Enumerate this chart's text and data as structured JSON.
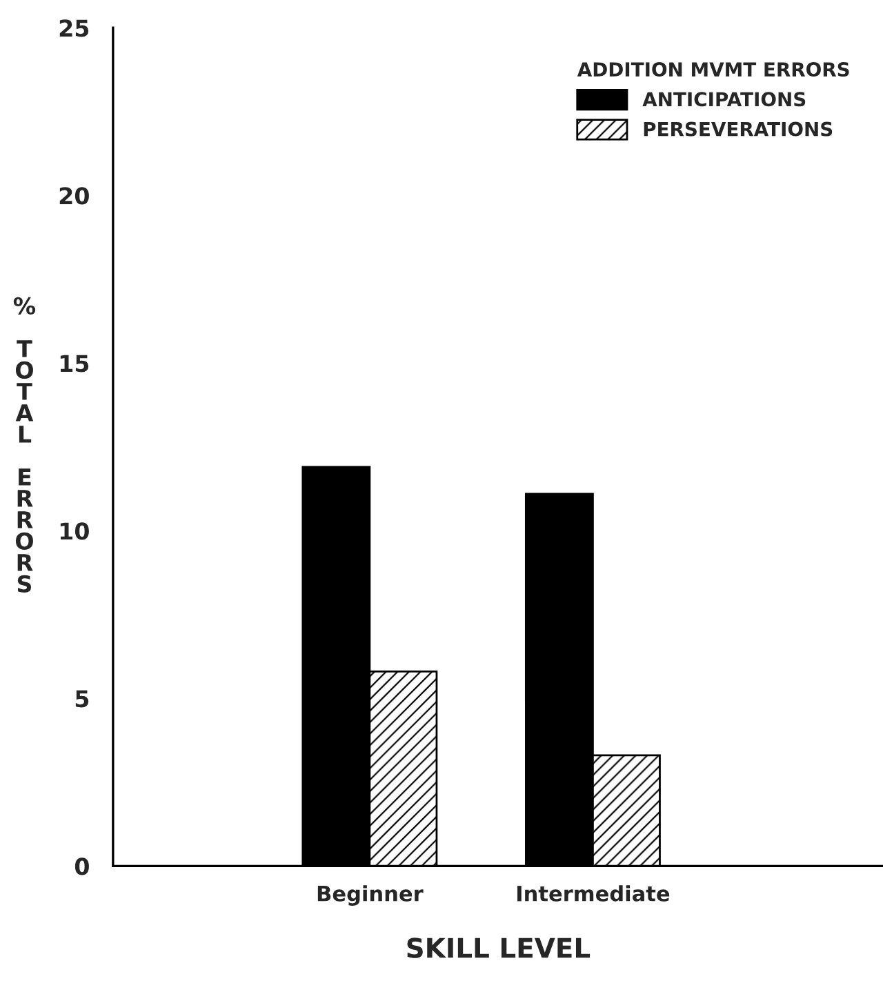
{
  "chart_data": {
    "type": "bar",
    "xlabel": "SKILL LEVEL",
    "ylabel": "% TOTAL ERRORS",
    "legend_title": "ADDITION MVMT ERRORS",
    "categories": [
      "Beginner",
      "Intermediate"
    ],
    "series": [
      {
        "name": "ANTICIPATIONS",
        "color": "#000000",
        "values": [
          11.9,
          11.1
        ]
      },
      {
        "name": "PERSEVERATIONS",
        "color": "#000000",
        "values": [
          5.8,
          3.3
        ]
      }
    ],
    "ylim": [
      0,
      25
    ],
    "yticks": [
      0,
      5,
      10,
      15,
      20,
      25
    ],
    "grid": false,
    "legend": "top right"
  }
}
